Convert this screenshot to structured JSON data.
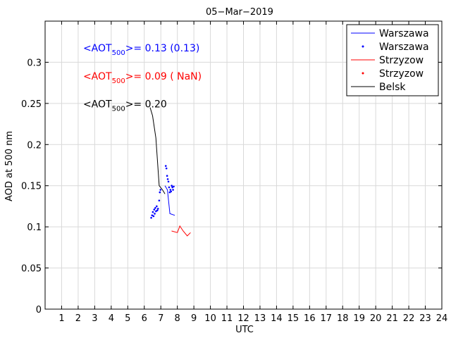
{
  "chart_data": {
    "type": "line",
    "title": "05−Mar−2019",
    "xlabel": "UTC",
    "ylabel": "AOD at 500 nm",
    "xlim": [
      0,
      24
    ],
    "ylim": [
      0,
      0.35
    ],
    "xticks": [
      1,
      2,
      3,
      4,
      5,
      6,
      7,
      8,
      9,
      10,
      11,
      12,
      13,
      14,
      15,
      16,
      17,
      18,
      19,
      20,
      21,
      22,
      23,
      24
    ],
    "yticks": [
      0,
      0.05,
      0.1,
      0.15,
      0.2,
      0.25,
      0.3
    ],
    "ytick_labels": [
      "0",
      "0.05",
      "0.1",
      "0.15",
      "0.2",
      "0.25",
      "0.3"
    ],
    "grid": true,
    "legend_position": "top-right",
    "colors": {
      "warszawa": "#0000ff",
      "strzyzow": "#ff0000",
      "belsk": "#000000",
      "grid": "#d9d9d9",
      "axis": "#000000"
    },
    "annotations": [
      {
        "pre": "<AOT",
        "sub": "500",
        "post": ">= 0.13 (0.13)",
        "color": "#0000ff",
        "x": 2.3,
        "y": 0.313
      },
      {
        "pre": "<AOT",
        "sub": "500",
        "post": ">= 0.09 ( NaN)",
        "color": "#ff0000",
        "x": 2.3,
        "y": 0.279
      },
      {
        "pre": "<AOT",
        "sub": "500",
        "post": ">= 0.20",
        "color": "#000000",
        "x": 2.3,
        "y": 0.245
      }
    ],
    "series": [
      {
        "name": "Warszawa",
        "style": "line",
        "color": "#0000ff",
        "x": [
          7.25,
          7.4,
          7.55,
          7.85
        ],
        "y": [
          0.15,
          0.145,
          0.116,
          0.114
        ]
      },
      {
        "name": "Warszawa",
        "style": "dots",
        "color": "#0000ff",
        "x": [
          6.42,
          6.47,
          6.52,
          6.56,
          6.6,
          6.63,
          6.67,
          6.71,
          6.75,
          6.79,
          6.83,
          6.9,
          6.94,
          6.98,
          7.3,
          7.34,
          7.38,
          7.42,
          7.46,
          7.5,
          7.54,
          7.58,
          7.62,
          7.66,
          7.7,
          7.74,
          7.78
        ],
        "y": [
          0.111,
          0.114,
          0.118,
          0.113,
          0.121,
          0.116,
          0.123,
          0.119,
          0.125,
          0.12,
          0.122,
          0.132,
          0.142,
          0.145,
          0.174,
          0.171,
          0.162,
          0.158,
          0.155,
          0.148,
          0.142,
          0.145,
          0.143,
          0.15,
          0.148,
          0.145,
          0.149
        ]
      },
      {
        "name": "Strzyzow",
        "style": "line",
        "color": "#ff0000",
        "x": [
          7.65,
          8.0,
          8.15,
          8.35,
          8.6,
          8.8
        ],
        "y": [
          0.095,
          0.093,
          0.101,
          0.095,
          0.089,
          0.093
        ]
      },
      {
        "name": "Strzyzow",
        "style": "dots",
        "color": "#ff0000",
        "x": [],
        "y": []
      },
      {
        "name": "Belsk",
        "style": "line",
        "color": "#000000",
        "x": [
          6.35,
          6.5,
          6.7,
          6.9,
          7.1,
          7.25
        ],
        "y": [
          0.245,
          0.235,
          0.208,
          0.15,
          0.145,
          0.14
        ]
      }
    ]
  }
}
